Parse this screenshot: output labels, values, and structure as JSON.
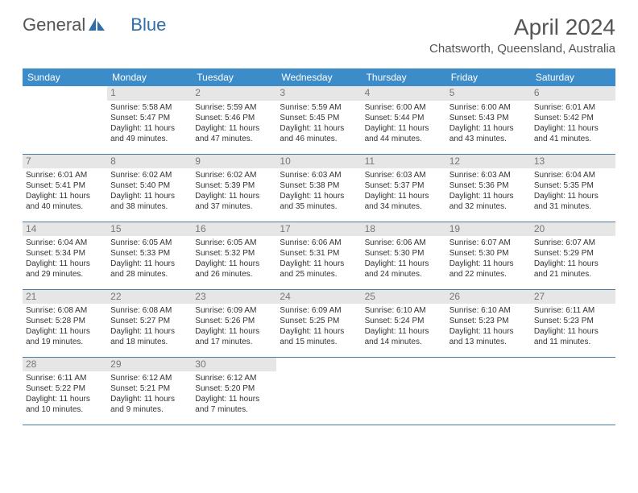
{
  "brand": {
    "part1": "General",
    "part2": "Blue"
  },
  "title": "April 2024",
  "location": "Chatsworth, Queensland, Australia",
  "colors": {
    "header_bg": "#3c8cc9",
    "daynum_bg": "#e6e6e6",
    "row_border": "#4a7aa8",
    "text": "#333333",
    "muted": "#777777"
  },
  "day_headers": [
    "Sunday",
    "Monday",
    "Tuesday",
    "Wednesday",
    "Thursday",
    "Friday",
    "Saturday"
  ],
  "weeks": [
    [
      {
        "n": "",
        "sr": "",
        "ss": "",
        "dl": ""
      },
      {
        "n": "1",
        "sr": "5:58 AM",
        "ss": "5:47 PM",
        "dl": "11 hours and 49 minutes."
      },
      {
        "n": "2",
        "sr": "5:59 AM",
        "ss": "5:46 PM",
        "dl": "11 hours and 47 minutes."
      },
      {
        "n": "3",
        "sr": "5:59 AM",
        "ss": "5:45 PM",
        "dl": "11 hours and 46 minutes."
      },
      {
        "n": "4",
        "sr": "6:00 AM",
        "ss": "5:44 PM",
        "dl": "11 hours and 44 minutes."
      },
      {
        "n": "5",
        "sr": "6:00 AM",
        "ss": "5:43 PM",
        "dl": "11 hours and 43 minutes."
      },
      {
        "n": "6",
        "sr": "6:01 AM",
        "ss": "5:42 PM",
        "dl": "11 hours and 41 minutes."
      }
    ],
    [
      {
        "n": "7",
        "sr": "6:01 AM",
        "ss": "5:41 PM",
        "dl": "11 hours and 40 minutes."
      },
      {
        "n": "8",
        "sr": "6:02 AM",
        "ss": "5:40 PM",
        "dl": "11 hours and 38 minutes."
      },
      {
        "n": "9",
        "sr": "6:02 AM",
        "ss": "5:39 PM",
        "dl": "11 hours and 37 minutes."
      },
      {
        "n": "10",
        "sr": "6:03 AM",
        "ss": "5:38 PM",
        "dl": "11 hours and 35 minutes."
      },
      {
        "n": "11",
        "sr": "6:03 AM",
        "ss": "5:37 PM",
        "dl": "11 hours and 34 minutes."
      },
      {
        "n": "12",
        "sr": "6:03 AM",
        "ss": "5:36 PM",
        "dl": "11 hours and 32 minutes."
      },
      {
        "n": "13",
        "sr": "6:04 AM",
        "ss": "5:35 PM",
        "dl": "11 hours and 31 minutes."
      }
    ],
    [
      {
        "n": "14",
        "sr": "6:04 AM",
        "ss": "5:34 PM",
        "dl": "11 hours and 29 minutes."
      },
      {
        "n": "15",
        "sr": "6:05 AM",
        "ss": "5:33 PM",
        "dl": "11 hours and 28 minutes."
      },
      {
        "n": "16",
        "sr": "6:05 AM",
        "ss": "5:32 PM",
        "dl": "11 hours and 26 minutes."
      },
      {
        "n": "17",
        "sr": "6:06 AM",
        "ss": "5:31 PM",
        "dl": "11 hours and 25 minutes."
      },
      {
        "n": "18",
        "sr": "6:06 AM",
        "ss": "5:30 PM",
        "dl": "11 hours and 24 minutes."
      },
      {
        "n": "19",
        "sr": "6:07 AM",
        "ss": "5:30 PM",
        "dl": "11 hours and 22 minutes."
      },
      {
        "n": "20",
        "sr": "6:07 AM",
        "ss": "5:29 PM",
        "dl": "11 hours and 21 minutes."
      }
    ],
    [
      {
        "n": "21",
        "sr": "6:08 AM",
        "ss": "5:28 PM",
        "dl": "11 hours and 19 minutes."
      },
      {
        "n": "22",
        "sr": "6:08 AM",
        "ss": "5:27 PM",
        "dl": "11 hours and 18 minutes."
      },
      {
        "n": "23",
        "sr": "6:09 AM",
        "ss": "5:26 PM",
        "dl": "11 hours and 17 minutes."
      },
      {
        "n": "24",
        "sr": "6:09 AM",
        "ss": "5:25 PM",
        "dl": "11 hours and 15 minutes."
      },
      {
        "n": "25",
        "sr": "6:10 AM",
        "ss": "5:24 PM",
        "dl": "11 hours and 14 minutes."
      },
      {
        "n": "26",
        "sr": "6:10 AM",
        "ss": "5:23 PM",
        "dl": "11 hours and 13 minutes."
      },
      {
        "n": "27",
        "sr": "6:11 AM",
        "ss": "5:23 PM",
        "dl": "11 hours and 11 minutes."
      }
    ],
    [
      {
        "n": "28",
        "sr": "6:11 AM",
        "ss": "5:22 PM",
        "dl": "11 hours and 10 minutes."
      },
      {
        "n": "29",
        "sr": "6:12 AM",
        "ss": "5:21 PM",
        "dl": "11 hours and 9 minutes."
      },
      {
        "n": "30",
        "sr": "6:12 AM",
        "ss": "5:20 PM",
        "dl": "11 hours and 7 minutes."
      },
      {
        "n": "",
        "sr": "",
        "ss": "",
        "dl": ""
      },
      {
        "n": "",
        "sr": "",
        "ss": "",
        "dl": ""
      },
      {
        "n": "",
        "sr": "",
        "ss": "",
        "dl": ""
      },
      {
        "n": "",
        "sr": "",
        "ss": "",
        "dl": ""
      }
    ]
  ],
  "labels": {
    "sunrise": "Sunrise:",
    "sunset": "Sunset:",
    "daylight": "Daylight:"
  }
}
